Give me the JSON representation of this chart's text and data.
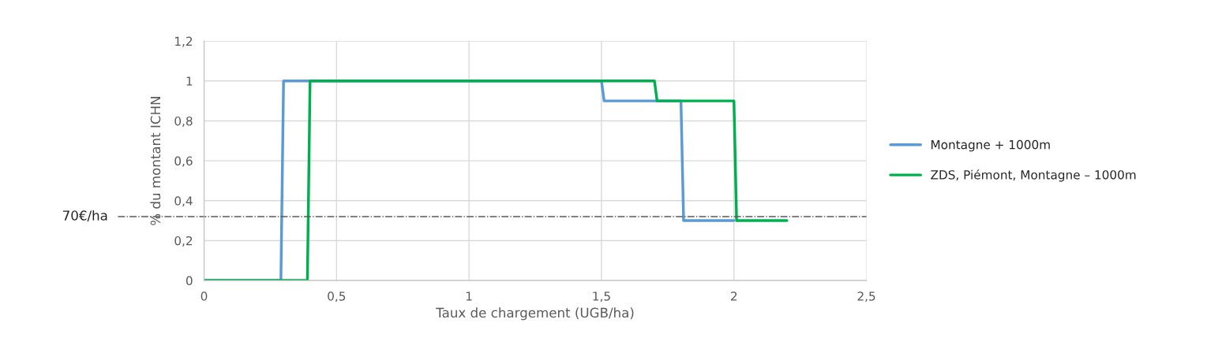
{
  "chart_data": {
    "type": "line",
    "xlabel": "Taux de chargement (UGB/ha)",
    "ylabel": "% du montant ICHN",
    "xlim": [
      0,
      2.5
    ],
    "xticks": [
      {
        "value": 0,
        "label": "0"
      },
      {
        "value": 0.5,
        "label": "0,5"
      },
      {
        "value": 1,
        "label": "1"
      },
      {
        "value": 1.5,
        "label": "1,5"
      },
      {
        "value": 2,
        "label": "2"
      },
      {
        "value": 2.5,
        "label": "2,5"
      }
    ],
    "ylim": [
      0,
      1.2
    ],
    "yticks": [
      {
        "value": 0,
        "label": "0"
      },
      {
        "value": 0.2,
        "label": "0,2"
      },
      {
        "value": 0.4,
        "label": "0,4"
      },
      {
        "value": 0.6,
        "label": "0,6"
      },
      {
        "value": 0.8,
        "label": "0,8"
      },
      {
        "value": 1,
        "label": "1"
      },
      {
        "value": 1.2,
        "label": "1,2"
      }
    ],
    "grid": true,
    "legend": "right",
    "marker": "none",
    "line_style": "solid",
    "series": [
      {
        "name": "Montagne + 1000m",
        "color": "#5b9bd5",
        "x": [
          0,
          0.29,
          0.3,
          1.5,
          1.51,
          1.8,
          1.81,
          2.0
        ],
        "values": [
          0,
          0,
          1,
          1,
          0.9,
          0.9,
          0.3,
          0.3
        ]
      },
      {
        "name": "ZDS, Piémont, Montagne – 1000m",
        "color": "#00b050",
        "x": [
          0,
          0.39,
          0.4,
          1.7,
          1.71,
          2.0,
          2.01,
          2.2
        ],
        "values": [
          0,
          0,
          1,
          1,
          0.9,
          0.9,
          0.3,
          0.3
        ]
      }
    ],
    "ref_lines": [
      {
        "axis": "y",
        "value": 0.32,
        "label": "70€/ha",
        "color": "#595959",
        "line_style": "dashdot"
      }
    ]
  }
}
